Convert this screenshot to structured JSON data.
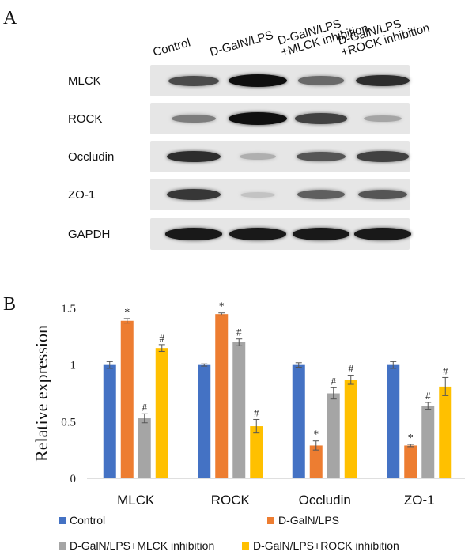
{
  "panel_a": {
    "letter": "A",
    "lanes": [
      {
        "lines": [
          "Control"
        ]
      },
      {
        "lines": [
          "D-GalN/LPS"
        ]
      },
      {
        "lines": [
          "D-GalN/LPS",
          "+MLCK inhibition"
        ]
      },
      {
        "lines": [
          "D-GalN/LPS",
          "+ROCK inhibition"
        ]
      }
    ],
    "blots": [
      {
        "label": "MLCK",
        "intensity": [
          0.7,
          1.0,
          0.55,
          0.85
        ]
      },
      {
        "label": "ROCK",
        "intensity": [
          0.45,
          1.0,
          0.75,
          0.25
        ]
      },
      {
        "label": "Occludin",
        "intensity": [
          0.85,
          0.2,
          0.65,
          0.75
        ]
      },
      {
        "label": "ZO-1",
        "intensity": [
          0.8,
          0.1,
          0.6,
          0.65
        ]
      },
      {
        "label": "GAPDH",
        "intensity": [
          0.95,
          0.95,
          0.95,
          0.95
        ]
      }
    ]
  },
  "panel_b": {
    "letter": "B"
  },
  "chart_data": {
    "type": "bar",
    "categories": [
      "MLCK",
      "ROCK",
      "Occludin",
      "ZO-1"
    ],
    "ylabel": "Relative expression",
    "ylim": [
      0,
      1.5
    ],
    "yticks": [
      "0",
      "0.5",
      "1",
      "1.5"
    ],
    "series": [
      {
        "name": "Control",
        "color": "#4472C4",
        "values": [
          1.0,
          1.0,
          1.0,
          1.0
        ],
        "errors": [
          0.03,
          0.01,
          0.02,
          0.03
        ],
        "marks": [
          "",
          "",
          "",
          ""
        ]
      },
      {
        "name": "D-GalN/LPS",
        "color": "#ED7D31",
        "values": [
          1.39,
          1.45,
          0.29,
          0.29
        ],
        "errors": [
          0.02,
          0.01,
          0.04,
          0.01
        ],
        "marks": [
          "*",
          "*",
          "*",
          "*"
        ]
      },
      {
        "name": "D-GalN/LPS+MLCK inhibition",
        "color": "#A5A5A5",
        "values": [
          0.53,
          1.2,
          0.75,
          0.64
        ],
        "errors": [
          0.04,
          0.03,
          0.05,
          0.03
        ],
        "marks": [
          "#",
          "#",
          "#",
          "#"
        ]
      },
      {
        "name": "D-GalN/LPS+ROCK inhibition",
        "color": "#FFC000",
        "values": [
          1.15,
          0.46,
          0.87,
          0.81
        ],
        "errors": [
          0.03,
          0.06,
          0.04,
          0.08
        ],
        "marks": [
          "#",
          "#",
          "#",
          "#"
        ]
      }
    ]
  }
}
